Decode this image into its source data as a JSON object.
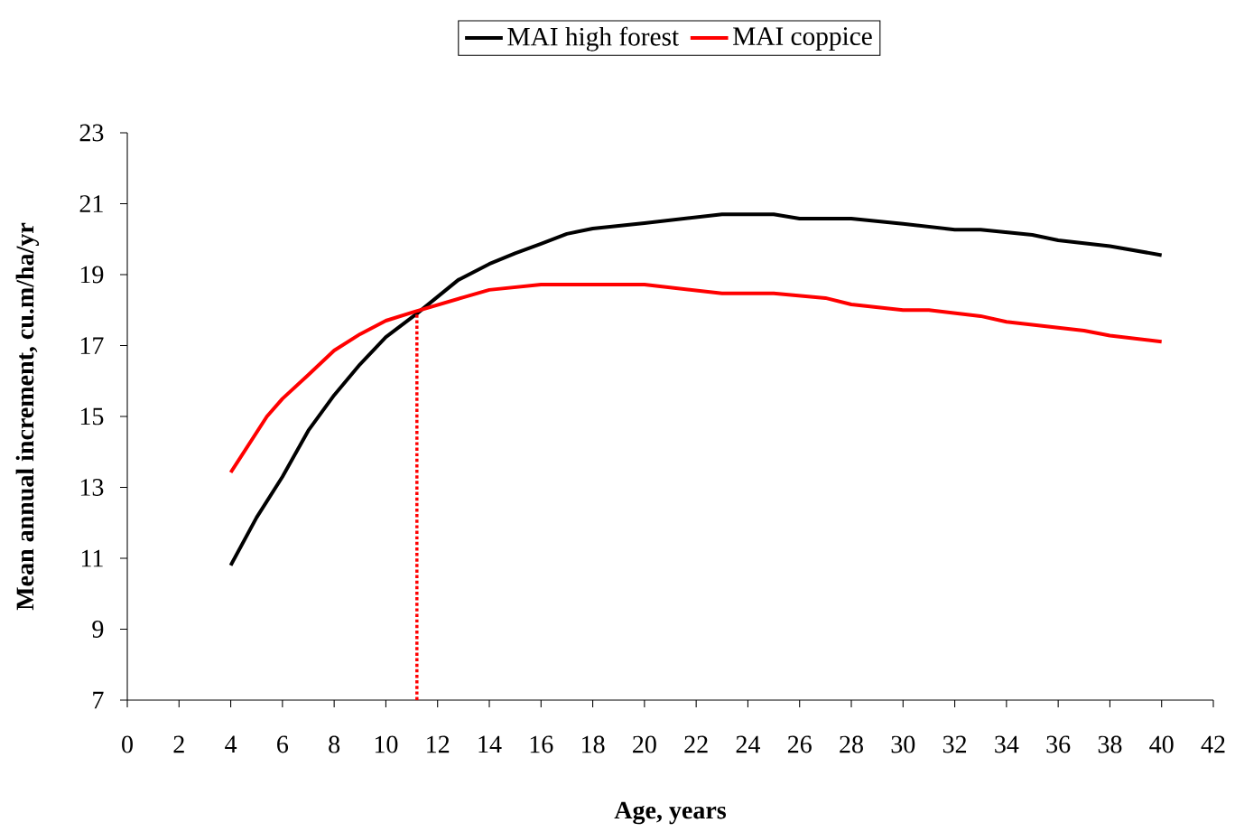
{
  "chart_data": {
    "type": "line",
    "xlabel": "Age, years",
    "ylabel": "Mean annual increment, cu.m/ha/yr",
    "xlim": [
      0,
      42
    ],
    "xticks": [
      0,
      2,
      4,
      6,
      8,
      10,
      12,
      14,
      16,
      18,
      20,
      22,
      24,
      26,
      28,
      30,
      32,
      34,
      36,
      38,
      40,
      42
    ],
    "ylim": [
      7,
      23
    ],
    "yticks": [
      7,
      9,
      11,
      13,
      15,
      17,
      19,
      21,
      23
    ],
    "grid": false,
    "legend": "top",
    "series": [
      {
        "name": "MAI high forest",
        "color": "#000000",
        "x": [
          4,
          5,
          6,
          7,
          8,
          9,
          10,
          11.2,
          12.8,
          14,
          15,
          16,
          17,
          18,
          20,
          23,
          25,
          26,
          28,
          30,
          32,
          33,
          35,
          36,
          38,
          40
        ],
        "values": [
          10.8,
          12.15,
          13.3,
          14.6,
          15.6,
          16.47,
          17.24,
          17.9,
          18.85,
          19.3,
          19.6,
          19.87,
          20.15,
          20.3,
          20.45,
          20.7,
          20.7,
          20.58,
          20.58,
          20.43,
          20.27,
          20.27,
          20.12,
          19.97,
          19.8,
          19.55
        ]
      },
      {
        "name": "MAI coppice",
        "color": "#ff0000",
        "x": [
          4,
          5.4,
          6,
          7,
          8,
          9,
          10,
          11.1,
          13,
          14,
          16,
          20,
          23,
          25,
          27,
          28,
          30,
          31,
          33,
          34,
          37,
          38,
          40
        ],
        "values": [
          13.42,
          15.0,
          15.5,
          16.17,
          16.86,
          17.32,
          17.7,
          17.95,
          18.36,
          18.57,
          18.72,
          18.72,
          18.47,
          18.47,
          18.34,
          18.16,
          18.0,
          18.0,
          17.83,
          17.67,
          17.42,
          17.28,
          17.11
        ]
      },
      {
        "type": "line",
        "line_style": "dotted",
        "color": "#ff0000",
        "x": [
          11.2,
          11.2
        ],
        "values": [
          7,
          18
        ]
      }
    ]
  }
}
